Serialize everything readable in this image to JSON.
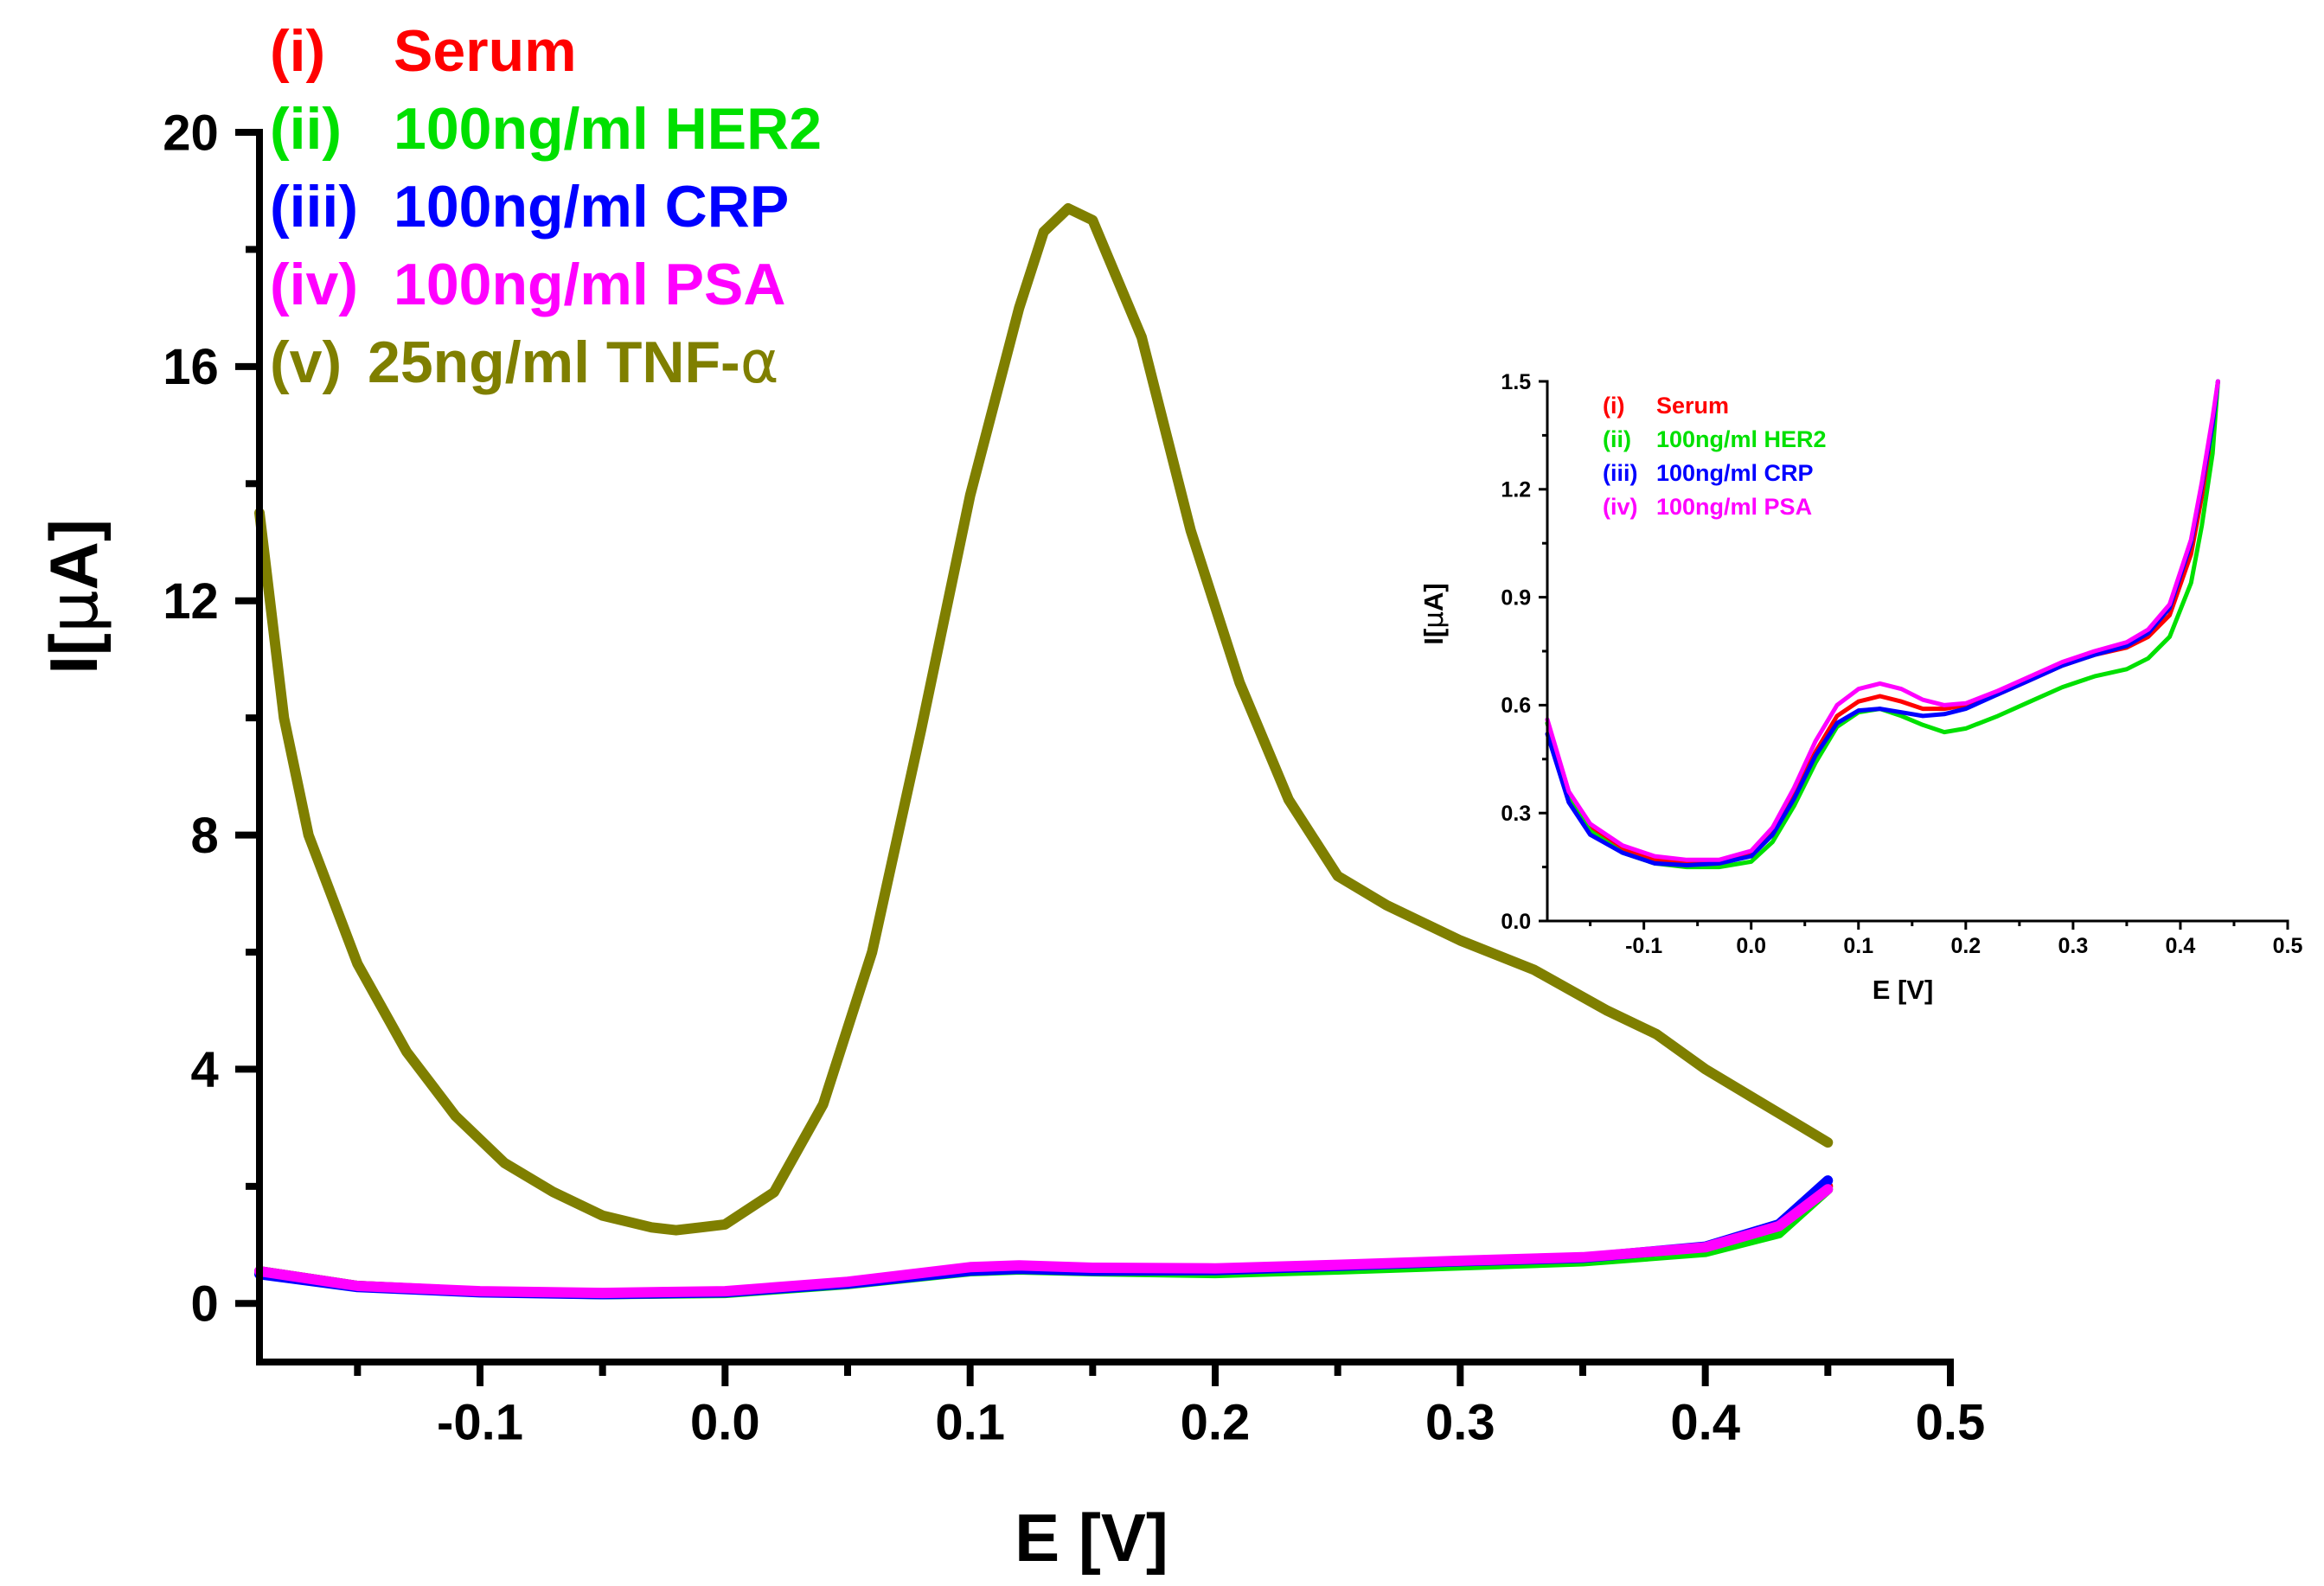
{
  "chart_data": [
    {
      "type": "line",
      "role": "main",
      "xlabel": "E [V]",
      "ylabel_prefix": "I[",
      "ylabel_mu": "μ",
      "ylabel_suffix": "A]",
      "xlim": [
        -0.19,
        0.5
      ],
      "ylim": [
        -1,
        20
      ],
      "x_ticks": [
        {
          "v": -0.1,
          "label": "-0.1"
        },
        {
          "v": 0.0,
          "label": "0.0"
        },
        {
          "v": 0.1,
          "label": "0.1"
        },
        {
          "v": 0.2,
          "label": "0.2"
        },
        {
          "v": 0.3,
          "label": "0.3"
        },
        {
          "v": 0.4,
          "label": "0.4"
        },
        {
          "v": 0.5,
          "label": "0.5"
        }
      ],
      "y_ticks": [
        {
          "v": 0,
          "label": "0"
        },
        {
          "v": 4,
          "label": "4"
        },
        {
          "v": 8,
          "label": "8"
        },
        {
          "v": 12,
          "label": "12"
        },
        {
          "v": 16,
          "label": "16"
        },
        {
          "v": 20,
          "label": "20"
        }
      ],
      "legend": [
        {
          "prefix": "(i)",
          "label": "Serum",
          "color": "#ff0000"
        },
        {
          "prefix": "(ii)",
          "label": "100ng/ml HER2",
          "color": "#00e000"
        },
        {
          "prefix": "(iii)",
          "label": "100ng/ml CRP",
          "color": "#0000ff"
        },
        {
          "prefix": "(iv)",
          "label": "100ng/ml PSA",
          "color": "#ff00ff"
        },
        {
          "prefix": "(v)",
          "label": "25ng/ml TNF-",
          "greek": "α",
          "color": "#7f7f00"
        }
      ],
      "series": [
        {
          "name": "(i) Serum",
          "color": "#ff0000",
          "x": [
            -0.19,
            -0.15,
            -0.1,
            -0.05,
            0.0,
            0.05,
            0.1,
            0.12,
            0.15,
            0.2,
            0.25,
            0.3,
            0.35,
            0.4,
            0.43,
            0.45
          ],
          "y": [
            0.55,
            0.3,
            0.2,
            0.17,
            0.2,
            0.35,
            0.58,
            0.6,
            0.58,
            0.58,
            0.65,
            0.72,
            0.78,
            0.95,
            1.3,
            2.0
          ]
        },
        {
          "name": "(ii) 100ng/ml HER2",
          "color": "#00e000",
          "x": [
            -0.19,
            -0.15,
            -0.1,
            -0.05,
            0.0,
            0.05,
            0.1,
            0.12,
            0.15,
            0.2,
            0.25,
            0.3,
            0.35,
            0.4,
            0.43,
            0.45
          ],
          "y": [
            0.55,
            0.3,
            0.2,
            0.16,
            0.18,
            0.33,
            0.55,
            0.58,
            0.55,
            0.52,
            0.58,
            0.65,
            0.72,
            0.88,
            1.2,
            1.95
          ]
        },
        {
          "name": "(iii) 100ng/ml CRP",
          "color": "#0000ff",
          "x": [
            -0.19,
            -0.15,
            -0.1,
            -0.05,
            0.0,
            0.05,
            0.1,
            0.12,
            0.15,
            0.2,
            0.25,
            0.3,
            0.35,
            0.4,
            0.43,
            0.45
          ],
          "y": [
            0.5,
            0.28,
            0.19,
            0.16,
            0.19,
            0.34,
            0.56,
            0.59,
            0.56,
            0.57,
            0.64,
            0.72,
            0.78,
            0.97,
            1.35,
            2.1
          ]
        },
        {
          "name": "(iv) 100ng/ml PSA",
          "color": "#ff00ff",
          "x": [
            -0.19,
            -0.15,
            -0.1,
            -0.05,
            0.0,
            0.05,
            0.1,
            0.12,
            0.15,
            0.2,
            0.25,
            0.3,
            0.35,
            0.4,
            0.43,
            0.45
          ],
          "y": [
            0.55,
            0.3,
            0.21,
            0.18,
            0.21,
            0.37,
            0.62,
            0.65,
            0.61,
            0.6,
            0.66,
            0.73,
            0.79,
            0.96,
            1.32,
            1.95
          ]
        },
        {
          "name": "(v) 25ng/ml TNF-α",
          "color": "#7f7f00",
          "x": [
            -0.19,
            -0.18,
            -0.17,
            -0.15,
            -0.13,
            -0.11,
            -0.09,
            -0.07,
            -0.05,
            -0.03,
            -0.02,
            -0.01,
            0.0,
            0.02,
            0.04,
            0.06,
            0.08,
            0.1,
            0.12,
            0.13,
            0.14,
            0.15,
            0.17,
            0.19,
            0.21,
            0.23,
            0.25,
            0.27,
            0.3,
            0.33,
            0.36,
            0.38,
            0.4,
            0.42,
            0.44,
            0.45
          ],
          "y": [
            13.5,
            10.0,
            8.0,
            5.8,
            4.3,
            3.2,
            2.4,
            1.9,
            1.5,
            1.3,
            1.25,
            1.3,
            1.35,
            1.9,
            3.4,
            6.0,
            9.8,
            13.8,
            17.0,
            18.3,
            18.7,
            18.5,
            16.5,
            13.2,
            10.6,
            8.6,
            7.3,
            6.8,
            6.2,
            5.7,
            5.0,
            4.6,
            4.0,
            3.5,
            3.0,
            2.75
          ]
        }
      ]
    },
    {
      "type": "line",
      "role": "inset",
      "xlabel": "E [V]",
      "ylabel_prefix": "I[",
      "ylabel_mu": "μ",
      "ylabel_suffix": "A]",
      "xlim": [
        -0.19,
        0.5
      ],
      "ylim": [
        0.0,
        1.5
      ],
      "x_ticks": [
        {
          "v": -0.1,
          "label": "-0.1"
        },
        {
          "v": 0.0,
          "label": "0.0"
        },
        {
          "v": 0.1,
          "label": "0.1"
        },
        {
          "v": 0.2,
          "label": "0.2"
        },
        {
          "v": 0.3,
          "label": "0.3"
        },
        {
          "v": 0.4,
          "label": "0.4"
        },
        {
          "v": 0.5,
          "label": "0.5"
        }
      ],
      "y_ticks": [
        {
          "v": 0.0,
          "label": "0.0"
        },
        {
          "v": 0.3,
          "label": "0.3"
        },
        {
          "v": 0.6,
          "label": "0.6"
        },
        {
          "v": 0.9,
          "label": "0.9"
        },
        {
          "v": 1.2,
          "label": "1.2"
        },
        {
          "v": 1.5,
          "label": "1.5"
        }
      ],
      "legend": [
        {
          "prefix": "(i)",
          "label": "Serum",
          "color": "#ff0000"
        },
        {
          "prefix": "(ii)",
          "label": "100ng/ml HER2",
          "color": "#00e000"
        },
        {
          "prefix": "(iii)",
          "label": "100ng/ml CRP",
          "color": "#0000ff"
        },
        {
          "prefix": "(iv)",
          "label": "100ng/ml PSA",
          "color": "#ff00ff"
        }
      ],
      "series": [
        {
          "name": "(i) Serum",
          "color": "#ff0000",
          "x": [
            -0.19,
            -0.17,
            -0.15,
            -0.12,
            -0.09,
            -0.06,
            -0.03,
            0.0,
            0.02,
            0.04,
            0.06,
            0.08,
            0.1,
            0.12,
            0.14,
            0.16,
            0.18,
            0.2,
            0.23,
            0.26,
            0.29,
            0.32,
            0.35,
            0.37,
            0.39,
            0.41,
            0.42,
            0.43,
            0.435
          ],
          "y": [
            0.55,
            0.35,
            0.26,
            0.2,
            0.17,
            0.16,
            0.165,
            0.19,
            0.25,
            0.35,
            0.47,
            0.57,
            0.61,
            0.625,
            0.61,
            0.59,
            0.59,
            0.6,
            0.63,
            0.67,
            0.71,
            0.74,
            0.76,
            0.79,
            0.85,
            1.02,
            1.18,
            1.36,
            1.5
          ]
        },
        {
          "name": "(ii) 100ng/ml HER2",
          "color": "#00e000",
          "x": [
            -0.19,
            -0.17,
            -0.15,
            -0.12,
            -0.09,
            -0.06,
            -0.03,
            0.0,
            0.02,
            0.04,
            0.06,
            0.08,
            0.1,
            0.12,
            0.14,
            0.16,
            0.18,
            0.2,
            0.23,
            0.26,
            0.29,
            0.32,
            0.35,
            0.37,
            0.39,
            0.41,
            0.42,
            0.43,
            0.435
          ],
          "y": [
            0.55,
            0.34,
            0.25,
            0.19,
            0.16,
            0.15,
            0.15,
            0.165,
            0.22,
            0.32,
            0.44,
            0.54,
            0.58,
            0.59,
            0.57,
            0.545,
            0.525,
            0.535,
            0.57,
            0.61,
            0.65,
            0.68,
            0.7,
            0.73,
            0.79,
            0.94,
            1.1,
            1.3,
            1.5
          ]
        },
        {
          "name": "(iii) 100ng/ml CRP",
          "color": "#0000ff",
          "x": [
            -0.19,
            -0.17,
            -0.15,
            -0.12,
            -0.09,
            -0.06,
            -0.03,
            0.0,
            0.02,
            0.04,
            0.06,
            0.08,
            0.1,
            0.12,
            0.14,
            0.16,
            0.18,
            0.2,
            0.23,
            0.26,
            0.29,
            0.32,
            0.35,
            0.37,
            0.39,
            0.41,
            0.42,
            0.43,
            0.435
          ],
          "y": [
            0.52,
            0.33,
            0.24,
            0.19,
            0.16,
            0.155,
            0.16,
            0.18,
            0.24,
            0.34,
            0.46,
            0.55,
            0.585,
            0.59,
            0.58,
            0.57,
            0.575,
            0.59,
            0.63,
            0.67,
            0.71,
            0.74,
            0.765,
            0.8,
            0.87,
            1.05,
            1.21,
            1.38,
            1.5
          ]
        },
        {
          "name": "(iv) 100ng/ml PSA",
          "color": "#ff00ff",
          "x": [
            -0.19,
            -0.17,
            -0.15,
            -0.12,
            -0.09,
            -0.06,
            -0.03,
            0.0,
            0.02,
            0.04,
            0.06,
            0.08,
            0.1,
            0.12,
            0.14,
            0.16,
            0.18,
            0.2,
            0.23,
            0.26,
            0.29,
            0.32,
            0.35,
            0.37,
            0.39,
            0.41,
            0.42,
            0.43,
            0.435
          ],
          "y": [
            0.56,
            0.36,
            0.27,
            0.21,
            0.18,
            0.17,
            0.17,
            0.195,
            0.26,
            0.37,
            0.5,
            0.6,
            0.645,
            0.66,
            0.645,
            0.615,
            0.6,
            0.605,
            0.64,
            0.68,
            0.72,
            0.75,
            0.775,
            0.81,
            0.88,
            1.06,
            1.22,
            1.4,
            1.5
          ]
        }
      ]
    }
  ]
}
